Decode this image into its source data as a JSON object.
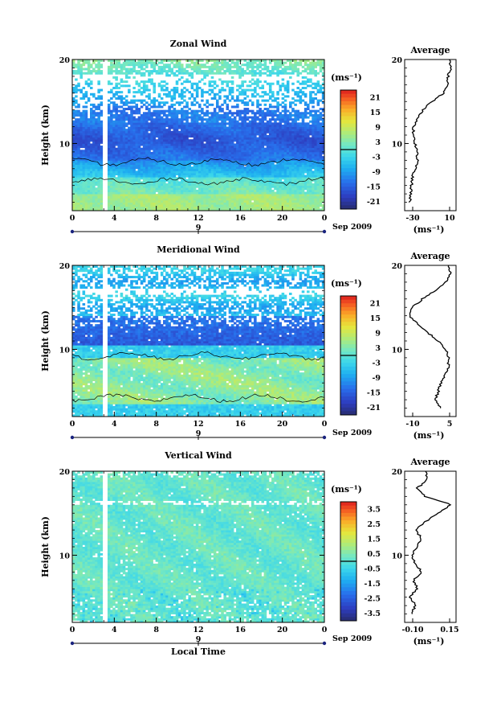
{
  "figure": {
    "x_common_label": "Local Time",
    "date_label": "Sep 2009",
    "day_label": "9",
    "y_label": "Height (km)",
    "avg_title": "Average",
    "unit_label": "(ms⁻¹)"
  },
  "panels": [
    {
      "title": "Zonal Wind",
      "colorbar_ticks": [
        "21",
        "15",
        "9",
        "3",
        "-3",
        "-9",
        "-15",
        "-21"
      ],
      "colorbar_range": [
        -24,
        24
      ],
      "avg_xticks": [
        "-30",
        "10"
      ]
    },
    {
      "title": "Meridional Wind",
      "colorbar_ticks": [
        "21",
        "15",
        "9",
        "3",
        "-3",
        "-9",
        "-15",
        "-21"
      ],
      "colorbar_range": [
        -24,
        24
      ],
      "avg_xticks": [
        "-10",
        "5"
      ]
    },
    {
      "title": "Vertical Wind",
      "colorbar_ticks": [
        "3.5",
        "2.5",
        "1.5",
        "0.5",
        "-0.5",
        "-1.5",
        "-2.5",
        "-3.5"
      ],
      "colorbar_range": [
        -4,
        4
      ],
      "avg_xticks": [
        "-0.10",
        "0.15"
      ]
    }
  ],
  "chart_data": [
    {
      "type": "heatmap",
      "title": "Zonal Wind",
      "xlabel": "",
      "ylabel": "Height (km)",
      "x_ticks": [
        "0",
        "4",
        "8",
        "12",
        "16",
        "20",
        "0"
      ],
      "y_ticks": [
        "10",
        "20"
      ],
      "xlim": [
        0,
        24
      ],
      "ylim": [
        2,
        20
      ],
      "units": "ms-1",
      "colorbar": [
        -21,
        -15,
        -9,
        -3,
        3,
        9,
        15,
        21
      ],
      "profile": {
        "heights": [
          3,
          4,
          5,
          6,
          7,
          8,
          9,
          10,
          11,
          12,
          13,
          14,
          15,
          16,
          17,
          18,
          19,
          20
        ],
        "values": [
          -28,
          -27,
          -26,
          -25,
          -22,
          -20,
          -20,
          -22,
          -24,
          -24,
          -20,
          -14,
          -4,
          8,
          12,
          13,
          16,
          14
        ]
      }
    },
    {
      "type": "heatmap",
      "title": "Meridional Wind",
      "xlabel": "",
      "ylabel": "Height (km)",
      "x_ticks": [
        "0",
        "4",
        "8",
        "12",
        "16",
        "20",
        "0"
      ],
      "y_ticks": [
        "10",
        "20"
      ],
      "xlim": [
        0,
        24
      ],
      "ylim": [
        2,
        20
      ],
      "units": "ms-1",
      "colorbar": [
        -21,
        -15,
        -9,
        -3,
        3,
        9,
        15,
        21
      ],
      "profile": {
        "heights": [
          3,
          4,
          5,
          6,
          7,
          8,
          9,
          10,
          11,
          12,
          13,
          14,
          15,
          16,
          17,
          18,
          19,
          20
        ],
        "values": [
          0,
          -2,
          -1,
          0,
          2,
          3,
          3,
          2,
          -1,
          -5,
          -9,
          -12,
          -11,
          -7,
          -2,
          2,
          4,
          3
        ]
      }
    },
    {
      "type": "heatmap",
      "title": "Vertical Wind",
      "xlabel": "Local Time",
      "ylabel": "Height (km)",
      "x_ticks": [
        "0",
        "4",
        "8",
        "12",
        "16",
        "20",
        "0"
      ],
      "y_ticks": [
        "10",
        "20"
      ],
      "xlim": [
        0,
        24
      ],
      "ylim": [
        2,
        20
      ],
      "units": "ms-1",
      "colorbar": [
        -3.5,
        -2.5,
        -1.5,
        -0.5,
        0.5,
        1.5,
        2.5,
        3.5
      ],
      "profile": {
        "heights": [
          3,
          4,
          5,
          6,
          7,
          8,
          9,
          10,
          11,
          12,
          13,
          14,
          15,
          16,
          17,
          18,
          19,
          20
        ],
        "values": [
          -0.05,
          -0.03,
          -0.06,
          -0.02,
          -0.04,
          0.0,
          -0.03,
          -0.05,
          -0.02,
          0.0,
          -0.03,
          0.02,
          0.08,
          0.15,
          0.02,
          -0.02,
          0.03,
          0.02
        ]
      }
    }
  ]
}
